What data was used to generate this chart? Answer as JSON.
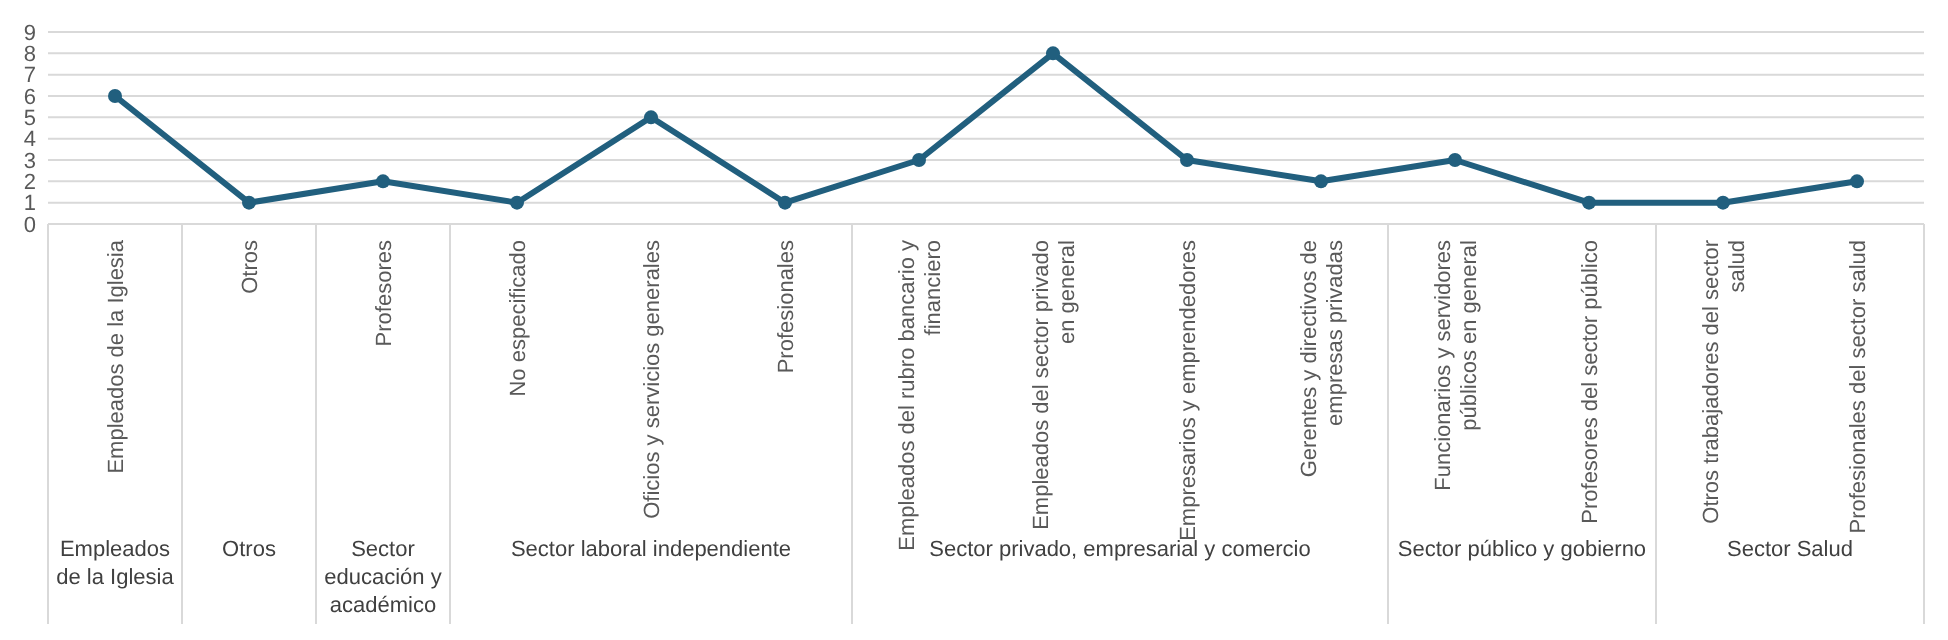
{
  "chart_data": {
    "type": "line",
    "categories": [
      "Empleados de la Iglesia",
      "Otros",
      "Profesores",
      "No especificado",
      "Oficios y servicios generales",
      "Profesionales",
      "Empleados del rubro bancario y financiero",
      "Empleados del sector privado en general",
      "Empresarios y emprendedores",
      "Gerentes y directivos de empresas privadas",
      "Funcionarios y servidores públicos en general",
      "Profesores del sector público",
      "Otros trabajadores del sector salud",
      "Profesionales del sector salud"
    ],
    "series": [
      {
        "color": "#215f7e",
        "values": [
          6,
          1,
          2,
          1,
          5,
          1,
          3,
          8,
          3,
          2,
          3,
          1,
          1,
          2
        ]
      }
    ],
    "ylim": [
      0,
      9
    ],
    "yticks": [
      0,
      1,
      2,
      3,
      4,
      5,
      6,
      7,
      8,
      9
    ],
    "grid": "y",
    "marker": "circle",
    "line_style": "solid",
    "annotations": [
      "Empleados de la Iglesia",
      "Otros",
      "Sector educación y académico",
      "Sector laboral independiente",
      "Sector privado, empresarial y comercio",
      "Sector público y gobierno",
      "Sector Salud"
    ]
  }
}
